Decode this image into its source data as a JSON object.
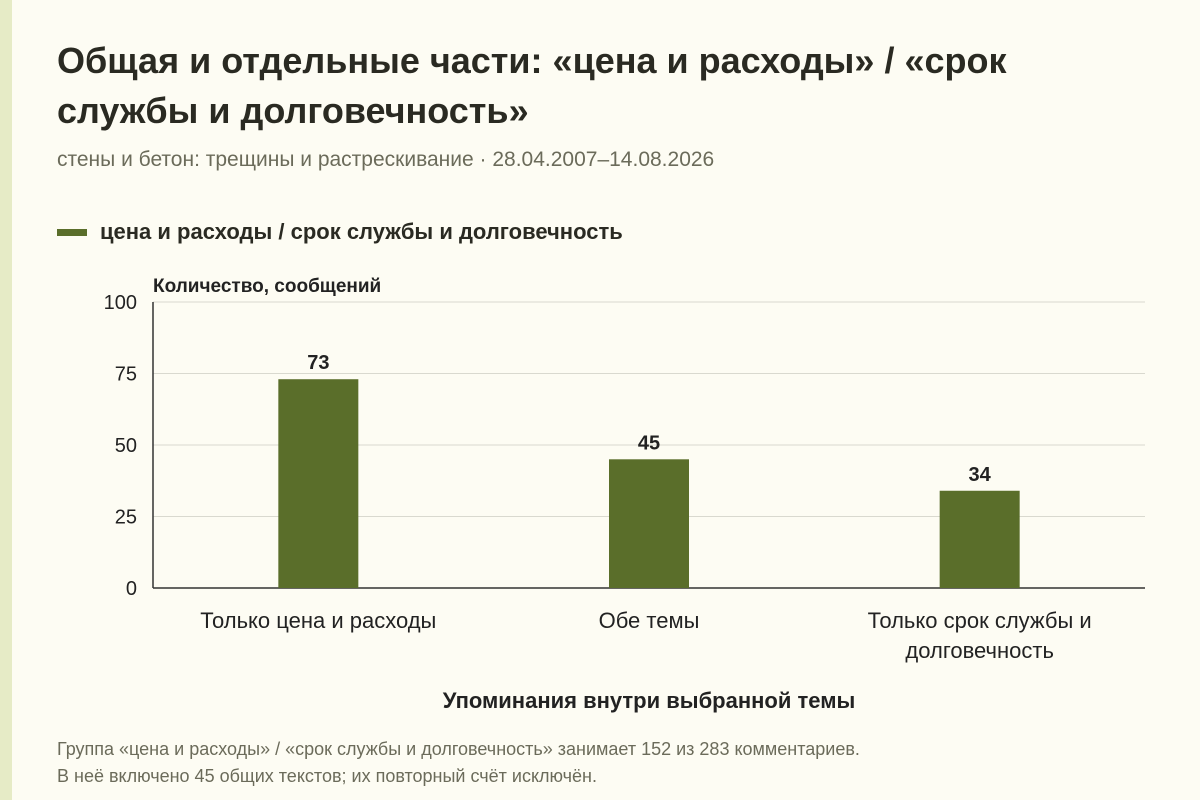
{
  "title": "Общая и отдельные части: «цена и расходы» / «срок службы и долговечность»",
  "subtitle": "стены и бетон: трещины и растрескивание · 28.04.2007–14.08.2026",
  "note_lines": [
    "Группа «цена и расходы» / «срок службы и долговечность» занимает 152 из 283 комментариев.",
    "В неё включено 45 общих текстов; их повторный счёт исключён."
  ],
  "colors": {
    "bar": "#5a6e2a",
    "grid": "#d9d9cf",
    "axis": "#333333"
  },
  "chart_data": {
    "type": "bar",
    "categories": [
      [
        "Только цена и расходы"
      ],
      [
        "Обе темы"
      ],
      [
        "Только срок службы и",
        "долговечность"
      ]
    ],
    "series": [
      {
        "name": "цена и расходы / срок службы и долговечность",
        "values": [
          73,
          45,
          34
        ]
      }
    ],
    "ylabel": "Количество, сообщений",
    "xlabel": "Упоминания внутри выбранной темы",
    "ylim": [
      0,
      100
    ],
    "yticks": [
      0,
      25,
      50,
      75,
      100
    ],
    "grid": true,
    "legend": "top-left"
  }
}
